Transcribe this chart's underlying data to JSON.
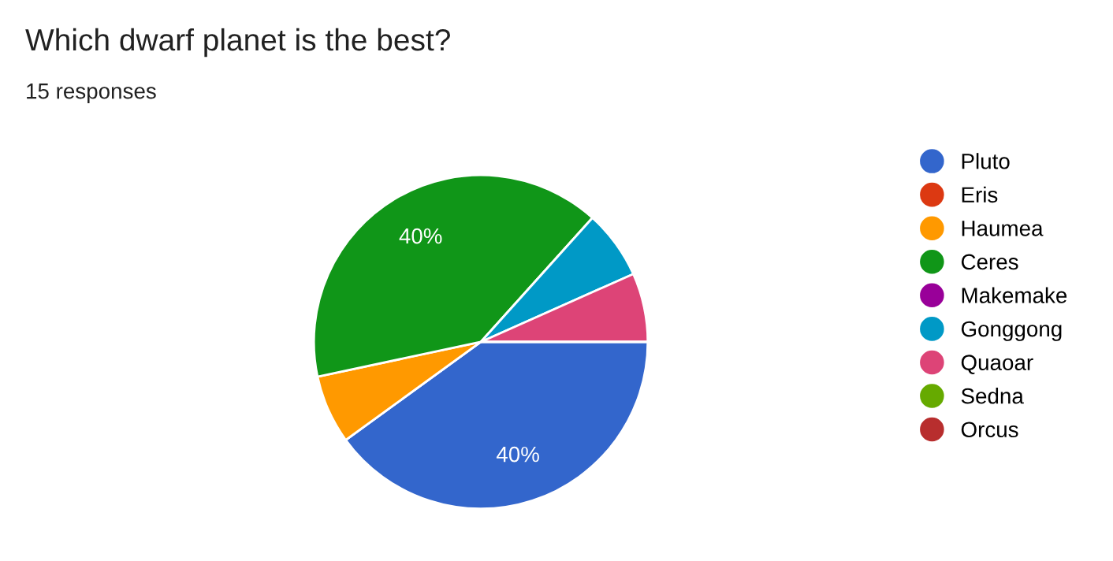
{
  "chart_data": {
    "type": "pie",
    "title": "Which dwarf planet is the best?",
    "subtitle": "15 responses",
    "categories": [
      "Pluto",
      "Eris",
      "Haumea",
      "Ceres",
      "Makemake",
      "Gonggong",
      "Quaoar",
      "Sedna",
      "Orcus"
    ],
    "values": [
      40,
      0,
      6.66,
      40,
      0,
      6.67,
      6.67,
      0,
      0
    ],
    "colors": [
      "#3366cc",
      "#dc3912",
      "#ff9900",
      "#109618",
      "#990099",
      "#0099c6",
      "#dd4477",
      "#66aa00",
      "#b82e2e"
    ],
    "value_labels": [
      "40%",
      null,
      null,
      "40%",
      null,
      null,
      null,
      null,
      null
    ],
    "legend": "right"
  }
}
